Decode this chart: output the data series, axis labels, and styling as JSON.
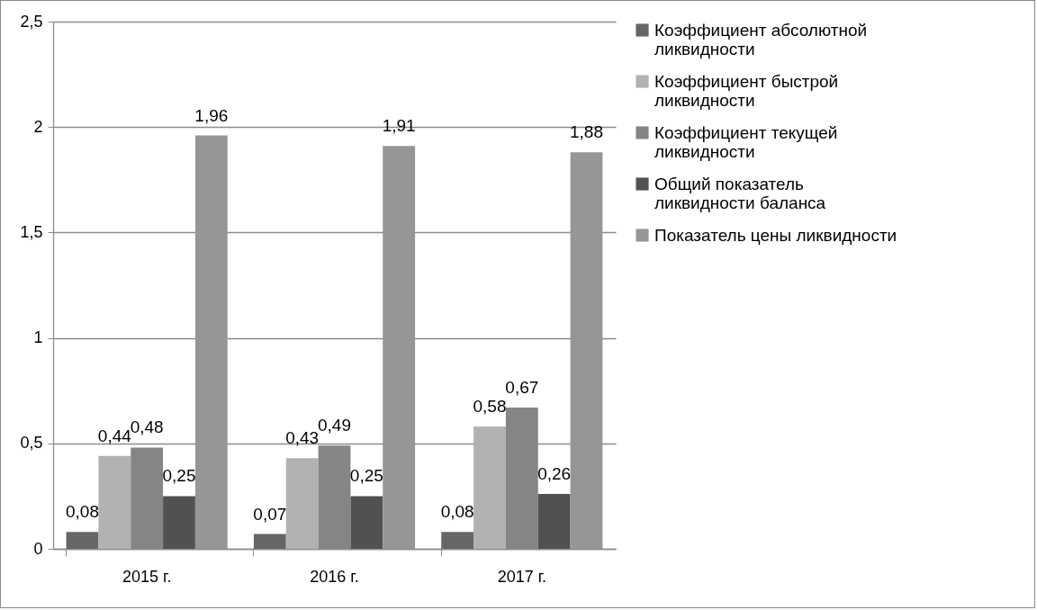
{
  "chart_data": {
    "type": "bar",
    "categories": [
      "2015 г.",
      "2016 г.",
      "2017 г."
    ],
    "series": [
      {
        "name": "Коэффициент абсолютной ликвидности",
        "color": "#666666",
        "values": [
          0.08,
          0.07,
          0.08
        ],
        "value_labels": [
          "0,08",
          "0,07",
          "0,08"
        ]
      },
      {
        "name": "Коэффициент быстрой ликвидности",
        "color": "#b2b2b2",
        "values": [
          0.44,
          0.43,
          0.58
        ],
        "value_labels": [
          "0,44",
          "0,43",
          "0,58"
        ]
      },
      {
        "name": "Коэффициент текущей ликвидности",
        "color": "#858585",
        "values": [
          0.48,
          0.49,
          0.67
        ],
        "value_labels": [
          "0,48",
          "0,49",
          "0,67"
        ]
      },
      {
        "name": "Общий показатель ликвидности баланса",
        "color": "#515151",
        "values": [
          0.25,
          0.25,
          0.26
        ],
        "value_labels": [
          "0,25",
          "0,25",
          "0,26"
        ]
      },
      {
        "name": "Показатель цены ликвидности",
        "color": "#969696",
        "values": [
          1.96,
          1.91,
          1.88
        ],
        "value_labels": [
          "1,96",
          "1,91",
          "1,88"
        ]
      }
    ],
    "ylim": [
      0,
      2.5
    ],
    "yticks": [
      0,
      {
        "value": 0.5,
        "label": "0,5"
      },
      1,
      {
        "value": 1.5,
        "label": "1,5"
      },
      2,
      {
        "value": 2.5,
        "label": "2,5"
      }
    ],
    "grid": "y",
    "legend": "right"
  }
}
